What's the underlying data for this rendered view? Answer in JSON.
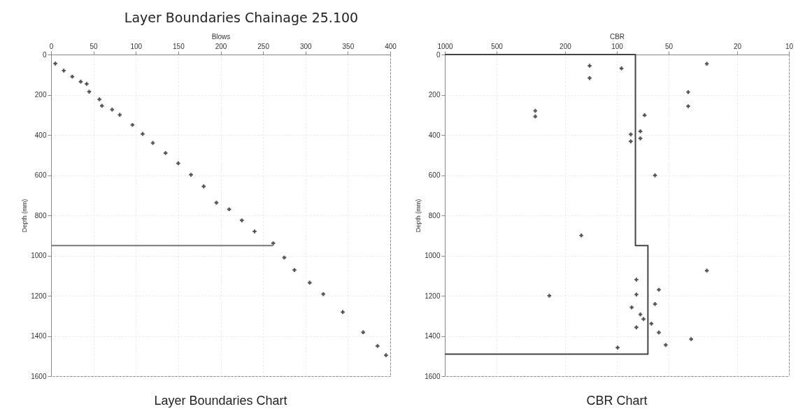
{
  "chart_data": [
    {
      "type": "scatter",
      "title": "Layer Boundaries Chart",
      "annotations": [
        "Layer Boundaries Chainage 25.100"
      ],
      "xlabel": "Blows",
      "ylabel": "Depth (mm)",
      "xlim": [
        0,
        400
      ],
      "xticks": [
        0,
        50,
        100,
        150,
        200,
        250,
        300,
        350,
        400
      ],
      "ylim": [
        1600,
        0
      ],
      "yticks": [
        0,
        200,
        400,
        600,
        800,
        1000,
        1200,
        1400,
        1600
      ],
      "grid": true,
      "marker": "cross",
      "series": [
        {
          "color": "#555555",
          "x": [
            5,
            15,
            25,
            35,
            42,
            45,
            57,
            60,
            72,
            81,
            96,
            108,
            120,
            135,
            150,
            165,
            180,
            195,
            210,
            225,
            240,
            262,
            275,
            287,
            305,
            321,
            344,
            368,
            385,
            395
          ],
          "values": [
            45,
            80,
            110,
            135,
            146,
            185,
            223,
            255,
            274,
            300,
            350,
            395,
            440,
            490,
            541,
            598,
            656,
            737,
            770,
            825,
            880,
            939,
            1010,
            1072,
            1135,
            1192,
            1281,
            1382,
            1450,
            1496
          ]
        },
        {
          "type": "line",
          "marker": "none",
          "color": "#777777",
          "x": [
            0,
            262
          ],
          "values": [
            950,
            950
          ]
        }
      ]
    },
    {
      "type": "scatter",
      "title": "CBR Chart",
      "xlabel": "CBR",
      "ylabel": "Depth (mm)",
      "log": "x",
      "xlim": [
        1000,
        10
      ],
      "xticks": [
        1000,
        500,
        200,
        100,
        50,
        20,
        10
      ],
      "ylim": [
        1600,
        0
      ],
      "yticks": [
        0,
        200,
        400,
        600,
        800,
        1000,
        1200,
        1400,
        1600
      ],
      "grid": true,
      "marker": "cross",
      "series": [
        {
          "color": "#555555",
          "x": [
            144,
            144,
            94,
            30,
            38.5,
            38.5,
            298,
            298,
            69,
            73,
            73,
            83,
            83,
            60,
            161,
            247,
            30,
            57,
            77,
            77,
            60,
            82,
            73,
            70,
            63,
            77,
            57,
            37,
            52,
            99
          ],
          "values": [
            56,
            117,
            69,
            46,
            187,
            257,
            280,
            308,
            302,
            382,
            417,
            397,
            432,
            601,
            900,
            1200,
            1075,
            1170,
            1194,
            1120,
            1241,
            1258,
            1293,
            1316,
            1339,
            1357,
            1383,
            1416,
            1445,
            1458
          ]
        },
        {
          "type": "line",
          "marker": "none",
          "color": "#444444",
          "x": [
            1000,
            78,
            78,
            66,
            66,
            1000
          ],
          "values": [
            0,
            0,
            950,
            950,
            1490,
            1490
          ]
        }
      ]
    }
  ]
}
